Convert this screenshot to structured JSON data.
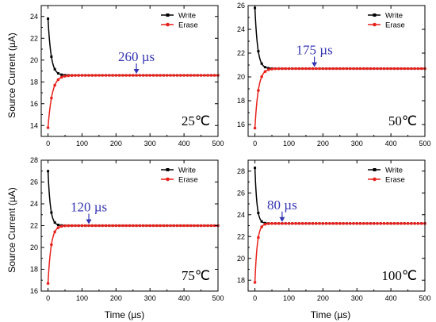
{
  "figure": {
    "ylabel": "Source Current (µA)",
    "xlabel": "Time (µs)"
  },
  "colors": {
    "write": "#000000",
    "erase": "#e8211b",
    "annotation": "#3434b4"
  },
  "chart_data": [
    {
      "type": "line",
      "temperature_label": "25℃",
      "annotation": {
        "text": "260 µs",
        "x": 260
      },
      "xlim": [
        -20,
        500
      ],
      "ylim": [
        13,
        25
      ],
      "xticks": [
        0,
        100,
        200,
        300,
        400,
        500
      ],
      "yticks": [
        14,
        16,
        18,
        20,
        22,
        24
      ],
      "grid": false,
      "legend": "top-right",
      "series": [
        {
          "name": "Write",
          "color": "#000000",
          "marker": "square",
          "start": 23.8,
          "end": 18.6,
          "tau": 9
        },
        {
          "name": "Erase",
          "color": "#e8211b",
          "marker": "circle",
          "start": 13.8,
          "end": 18.6,
          "tau": 12
        }
      ]
    },
    {
      "type": "line",
      "temperature_label": "50℃",
      "annotation": {
        "text": "175 µs",
        "x": 175
      },
      "xlim": [
        -20,
        500
      ],
      "ylim": [
        15,
        26
      ],
      "xticks": [
        0,
        100,
        200,
        300,
        400,
        500
      ],
      "yticks": [
        16,
        18,
        20,
        22,
        24,
        26
      ],
      "grid": false,
      "legend": "top-right",
      "series": [
        {
          "name": "Write",
          "color": "#000000",
          "marker": "square",
          "start": 25.8,
          "end": 20.7,
          "tau": 8
        },
        {
          "name": "Erase",
          "color": "#e8211b",
          "marker": "circle",
          "start": 15.7,
          "end": 20.7,
          "tau": 10
        }
      ]
    },
    {
      "type": "line",
      "temperature_label": "75℃",
      "annotation": {
        "text": "120 µs",
        "x": 120
      },
      "xlim": [
        -20,
        500
      ],
      "ylim": [
        16,
        28
      ],
      "xticks": [
        0,
        100,
        200,
        300,
        400,
        500
      ],
      "yticks": [
        16,
        18,
        20,
        22,
        24,
        26,
        28
      ],
      "grid": false,
      "legend": "top-right",
      "series": [
        {
          "name": "Write",
          "color": "#000000",
          "marker": "square",
          "start": 27.0,
          "end": 22.0,
          "tau": 7
        },
        {
          "name": "Erase",
          "color": "#e8211b",
          "marker": "circle",
          "start": 16.7,
          "end": 22.0,
          "tau": 9
        }
      ]
    },
    {
      "type": "line",
      "temperature_label": "100℃",
      "annotation": {
        "text": "80 µs",
        "x": 80
      },
      "xlim": [
        -20,
        500
      ],
      "ylim": [
        17,
        29
      ],
      "xticks": [
        0,
        100,
        200,
        300,
        400,
        500
      ],
      "yticks": [
        18,
        20,
        22,
        24,
        26,
        28
      ],
      "grid": false,
      "legend": "top-right",
      "series": [
        {
          "name": "Write",
          "color": "#000000",
          "marker": "square",
          "start": 28.3,
          "end": 23.2,
          "tau": 6
        },
        {
          "name": "Erase",
          "color": "#e8211b",
          "marker": "circle",
          "start": 17.8,
          "end": 23.2,
          "tau": 7
        }
      ]
    }
  ]
}
